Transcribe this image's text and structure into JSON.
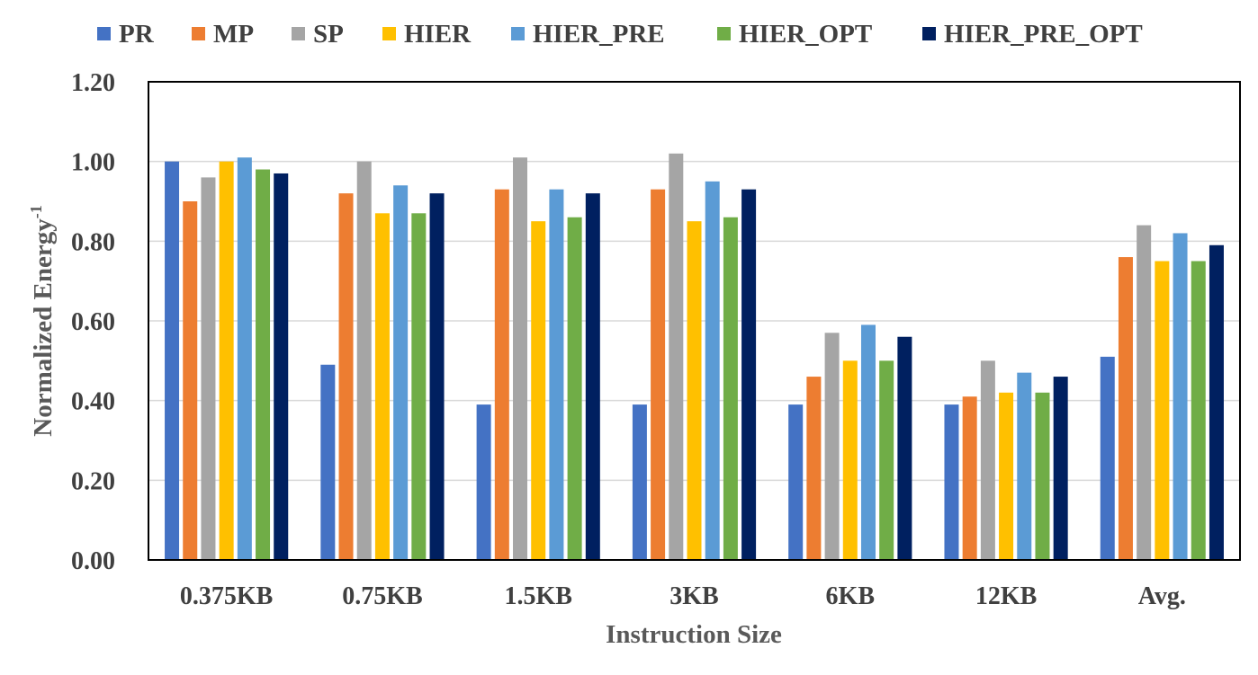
{
  "chart_data": {
    "type": "bar",
    "title": "",
    "xlabel": "Instruction Size",
    "ylabel_main": "Normalized Energy",
    "ylabel_sup": "-1",
    "ylim": [
      0,
      1.2
    ],
    "yticks": [
      "0.00",
      "0.20",
      "0.40",
      "0.60",
      "0.80",
      "1.00",
      "1.20"
    ],
    "grid": true,
    "legend_position": "top",
    "categories": [
      "0.375KB",
      "0.75KB",
      "1.5KB",
      "3KB",
      "6KB",
      "12KB",
      "Avg."
    ],
    "series": [
      {
        "name": "PR",
        "color": "#4472C4",
        "values": [
          1.0,
          0.49,
          0.39,
          0.39,
          0.39,
          0.39,
          0.51
        ]
      },
      {
        "name": "MP",
        "color": "#ED7D31",
        "values": [
          0.9,
          0.92,
          0.93,
          0.93,
          0.46,
          0.41,
          0.76
        ]
      },
      {
        "name": "SP",
        "color": "#A5A5A5",
        "values": [
          0.96,
          1.0,
          1.01,
          1.02,
          0.57,
          0.5,
          0.84
        ]
      },
      {
        "name": "HIER",
        "color": "#FFC000",
        "values": [
          1.0,
          0.87,
          0.85,
          0.85,
          0.5,
          0.42,
          0.75
        ]
      },
      {
        "name": "HIER_PRE",
        "color": "#5B9BD5",
        "values": [
          1.01,
          0.94,
          0.93,
          0.95,
          0.59,
          0.47,
          0.82
        ]
      },
      {
        "name": "HIER_OPT",
        "color": "#70AD47",
        "values": [
          0.98,
          0.87,
          0.86,
          0.86,
          0.5,
          0.42,
          0.75
        ]
      },
      {
        "name": "HIER_PRE_OPT",
        "color": "#002060",
        "values": [
          0.97,
          0.92,
          0.92,
          0.93,
          0.56,
          0.46,
          0.79
        ]
      }
    ]
  }
}
